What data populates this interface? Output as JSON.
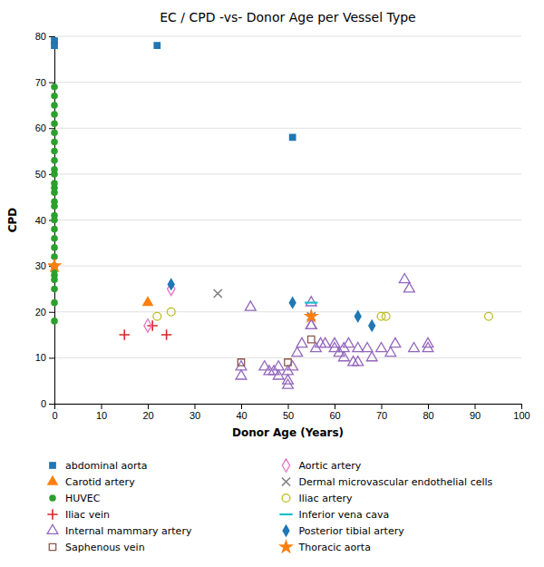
{
  "chart_data": {
    "type": "scatter",
    "title": "EC / CPD -vs- Donor Age per Vessel Type",
    "xlabel": "Donor Age (Years)",
    "ylabel": "CPD",
    "xlim": [
      0,
      100
    ],
    "ylim": [
      0,
      80
    ],
    "xticks": [
      0,
      10,
      20,
      30,
      40,
      50,
      60,
      70,
      80,
      90,
      100
    ],
    "yticks": [
      0,
      10,
      20,
      30,
      40,
      50,
      60,
      70,
      80
    ],
    "grid": "y",
    "legend": "bottom",
    "series": [
      {
        "name": "abdominal aorta",
        "marker": "square",
        "x": [
          0,
          0,
          22,
          51
        ],
        "values": [
          78,
          79,
          78,
          58
        ]
      },
      {
        "name": "Carotid artery",
        "marker": "triangle",
        "x": [
          20
        ],
        "values": [
          22
        ]
      },
      {
        "name": "HUVEC",
        "marker": "circle",
        "x": [
          0,
          0,
          0,
          0,
          0,
          0,
          0,
          0,
          0,
          0,
          0,
          0,
          0,
          0,
          0,
          0,
          0,
          0,
          0,
          0,
          0,
          0,
          0,
          0,
          0,
          0,
          0,
          0,
          0
        ],
        "values": [
          18,
          22,
          25,
          27,
          28,
          29,
          30,
          32,
          34,
          36,
          38,
          40,
          41,
          43,
          44,
          46,
          47,
          48,
          50,
          51,
          53,
          55,
          57,
          59,
          61,
          63,
          65,
          67,
          69
        ]
      },
      {
        "name": "Iliac vein",
        "marker": "plus",
        "x": [
          15,
          21,
          24
        ],
        "values": [
          15,
          17,
          15
        ]
      },
      {
        "name": "Internal mammary artery",
        "marker": "triangle-open",
        "x": [
          40,
          40,
          42,
          45,
          46,
          47,
          48,
          48,
          50,
          50,
          50,
          51,
          52,
          53,
          55,
          55,
          55,
          56,
          57,
          58,
          60,
          60,
          61,
          62,
          62,
          63,
          64,
          65,
          65,
          67,
          68,
          70,
          72,
          73,
          75,
          76,
          77,
          80,
          80
        ],
        "values": [
          6,
          8,
          21,
          8,
          7,
          7,
          6,
          8,
          4,
          5,
          7,
          8,
          11,
          13,
          17,
          17,
          22,
          12,
          13,
          13,
          13,
          12,
          11,
          10,
          12,
          13,
          9,
          12,
          9,
          12,
          10,
          12,
          11,
          13,
          27,
          25,
          12,
          12,
          13
        ]
      },
      {
        "name": "Saphenous vein",
        "marker": "square-open",
        "x": [
          40,
          50,
          55
        ],
        "values": [
          9,
          9,
          14
        ]
      },
      {
        "name": "Aortic artery",
        "marker": "diamond-open",
        "x": [
          20,
          25
        ],
        "values": [
          17,
          25
        ]
      },
      {
        "name": "Dermal microvascular endothelial cells",
        "marker": "x",
        "x": [
          35,
          55
        ],
        "values": [
          24,
          19
        ]
      },
      {
        "name": "Iliac artery",
        "marker": "circle-open",
        "x": [
          22,
          25,
          70,
          71,
          93
        ],
        "values": [
          19,
          20,
          19,
          19,
          19
        ]
      },
      {
        "name": "Inferior vena cava",
        "marker": "hline",
        "x": [
          55
        ],
        "values": [
          22
        ]
      },
      {
        "name": "Posterior tibial artery",
        "marker": "diamond",
        "x": [
          25,
          51,
          65,
          68
        ],
        "values": [
          26,
          22,
          19,
          17
        ]
      },
      {
        "name": "Thoracic aorta",
        "marker": "star",
        "x": [
          0,
          55
        ],
        "values": [
          30,
          19
        ]
      }
    ]
  }
}
